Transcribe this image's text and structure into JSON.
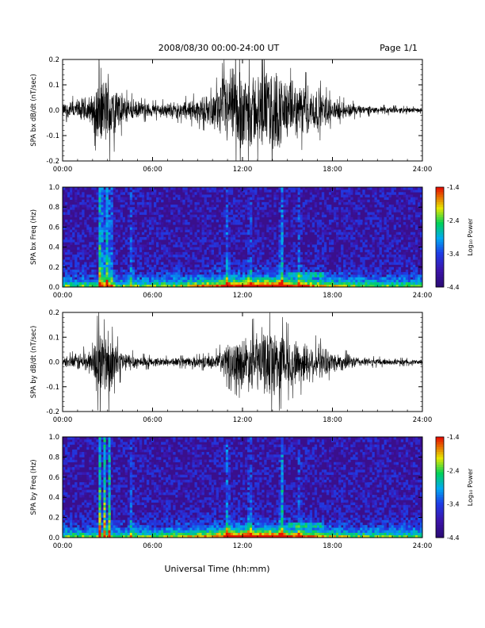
{
  "header": {
    "title": "2008/08/30   00:00-24:00 UT",
    "page": "Page 1/1"
  },
  "xaxis": {
    "label": "Universal Time (hh:mm)",
    "ticks": [
      "00:00",
      "06:00",
      "12:00",
      "18:00",
      "24:00"
    ]
  },
  "colors": {
    "trace": "#000000",
    "spectrogram_background": "#3a0f8c"
  },
  "chart_data": [
    {
      "type": "line",
      "title": "",
      "ylabel": "SPA bx dB/dt (nT/sec)",
      "xlabel": "Universal Time (hh:mm)",
      "xlim": [
        0,
        24
      ],
      "ylim": [
        -0.2,
        0.2
      ],
      "yticks": [
        "0.2",
        "0.1",
        "0.0",
        "-0.1",
        "-0.2"
      ],
      "series": [
        {
          "x": [
            0,
            1,
            2,
            2.5,
            2.8,
            3,
            3.2,
            4,
            5,
            6,
            8,
            10,
            11,
            12,
            13,
            14,
            14.5,
            15,
            16,
            17,
            18,
            20,
            22,
            24
          ],
          "values": [
            0.03,
            0.05,
            0.07,
            0.2,
            0.12,
            0.2,
            0.15,
            0.07,
            0.04,
            0.03,
            0.04,
            0.07,
            0.18,
            0.2,
            0.16,
            0.2,
            0.18,
            0.13,
            0.12,
            0.1,
            0.05,
            0.02,
            0.015,
            0.01
          ]
        }
      ]
    },
    {
      "type": "heatmap",
      "title": "",
      "ylabel": "SPA bx Freq (Hz)",
      "xlabel": "Universal Time (hh:mm)",
      "xlim": [
        0,
        24
      ],
      "ylim": [
        0,
        1.0
      ],
      "yticks": [
        "1.0",
        "0.8",
        "0.6",
        "0.4",
        "0.2",
        "0.0"
      ],
      "colorbar": {
        "label": "Log₁₀ Power",
        "range": [
          -4.4,
          -1.4
        ],
        "ticks": [
          "-1.4",
          "-2.4",
          "-3.4",
          "-4.4"
        ]
      },
      "bursts": [
        {
          "t": 2.5,
          "strength": 1.0
        },
        {
          "t": 2.7,
          "strength": 0.9
        },
        {
          "t": 3.0,
          "strength": 1.0
        },
        {
          "t": 3.2,
          "strength": 0.8
        },
        {
          "t": 4.6,
          "strength": 0.4
        },
        {
          "t": 11.0,
          "strength": 0.5
        },
        {
          "t": 12.5,
          "strength": 0.45
        },
        {
          "t": 14.6,
          "strength": 0.7
        },
        {
          "t": 15.8,
          "strength": 0.4
        }
      ]
    },
    {
      "type": "line",
      "title": "",
      "ylabel": "SPA by dB/dt (nT/sec)",
      "xlabel": "Universal Time (hh:mm)",
      "xlim": [
        0,
        24
      ],
      "ylim": [
        -0.2,
        0.2
      ],
      "yticks": [
        "0.2",
        "0.1",
        "0.0",
        "-0.1",
        "-0.2"
      ],
      "series": [
        {
          "x": [
            0,
            1,
            2,
            2.5,
            2.8,
            3,
            3.2,
            4,
            5,
            6,
            8,
            10,
            11,
            12,
            13,
            14,
            14.5,
            15,
            16,
            17,
            18,
            20,
            22,
            24
          ],
          "values": [
            0.02,
            0.04,
            0.06,
            0.19,
            0.13,
            0.2,
            0.12,
            0.05,
            0.03,
            0.02,
            0.02,
            0.03,
            0.08,
            0.12,
            0.14,
            0.16,
            0.15,
            0.12,
            0.1,
            0.08,
            0.05,
            0.02,
            0.015,
            0.01
          ]
        }
      ]
    },
    {
      "type": "heatmap",
      "title": "",
      "ylabel": "SPA by Freq (Hz)",
      "xlabel": "Universal Time (hh:mm)",
      "xlim": [
        0,
        24
      ],
      "ylim": [
        0,
        1.0
      ],
      "yticks": [
        "1.0",
        "0.8",
        "0.6",
        "0.4",
        "0.2",
        "0.0"
      ],
      "colorbar": {
        "label": "Log₁₀ Power",
        "range": [
          -4.4,
          -1.4
        ],
        "ticks": [
          "-1.4",
          "-2.4",
          "-3.4",
          "-4.4"
        ]
      },
      "bursts": [
        {
          "t": 2.5,
          "strength": 1.0
        },
        {
          "t": 2.8,
          "strength": 0.9
        },
        {
          "t": 3.1,
          "strength": 1.0
        },
        {
          "t": 4.6,
          "strength": 0.4
        },
        {
          "t": 11.0,
          "strength": 0.6
        },
        {
          "t": 12.5,
          "strength": 0.5
        },
        {
          "t": 14.6,
          "strength": 0.8
        },
        {
          "t": 15.8,
          "strength": 0.4
        }
      ]
    }
  ]
}
